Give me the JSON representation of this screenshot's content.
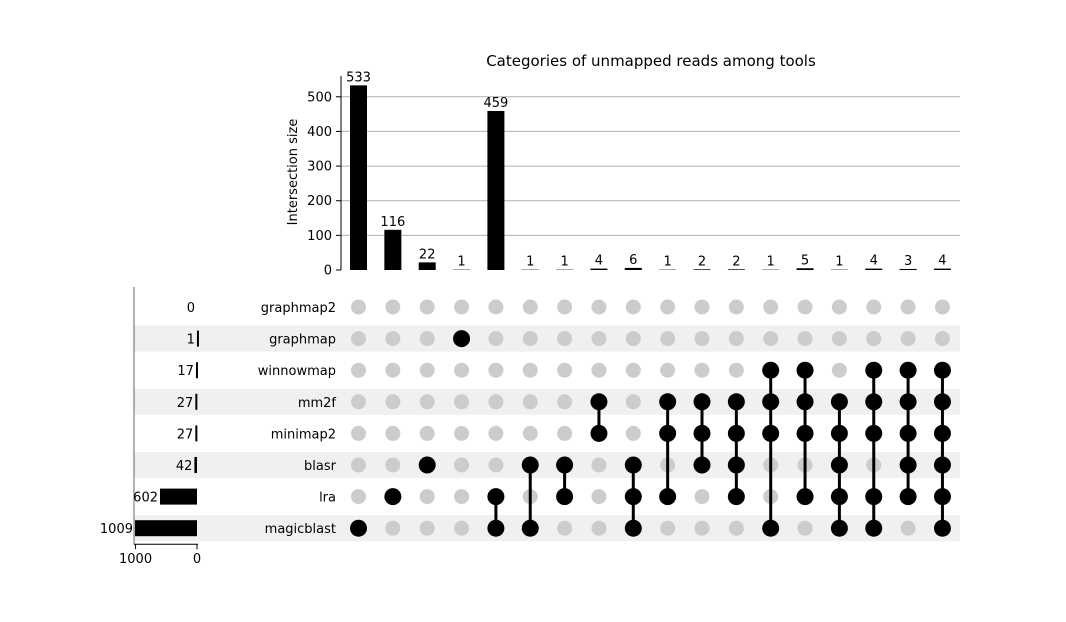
{
  "chart_data": {
    "type": "upset",
    "title": "Categories of unmapped reads among tools",
    "ylabel": "Intersection size",
    "ylim": [
      0,
      560
    ],
    "yticks": [
      0,
      100,
      200,
      300,
      400,
      500
    ],
    "set_size_ticks": [
      1000,
      0
    ],
    "set_size_xlim": [
      1009,
      0
    ],
    "grid": true,
    "sets": [
      {
        "name": "graphmap2",
        "size": 0
      },
      {
        "name": "graphmap",
        "size": 1
      },
      {
        "name": "winnowmap",
        "size": 17
      },
      {
        "name": "mm2f",
        "size": 27
      },
      {
        "name": "minimap2",
        "size": 27
      },
      {
        "name": "blasr",
        "size": 42
      },
      {
        "name": "lra",
        "size": 602
      },
      {
        "name": "magicblast",
        "size": 1009
      }
    ],
    "intersections": [
      {
        "value": 533,
        "members": [
          "magicblast"
        ]
      },
      {
        "value": 116,
        "members": [
          "lra"
        ]
      },
      {
        "value": 22,
        "members": [
          "blasr"
        ]
      },
      {
        "value": 1,
        "members": [
          "graphmap"
        ]
      },
      {
        "value": 459,
        "members": [
          "lra",
          "magicblast"
        ]
      },
      {
        "value": 1,
        "members": [
          "blasr",
          "magicblast"
        ]
      },
      {
        "value": 1,
        "members": [
          "blasr",
          "lra"
        ]
      },
      {
        "value": 4,
        "members": [
          "mm2f",
          "minimap2"
        ]
      },
      {
        "value": 6,
        "members": [
          "blasr",
          "lra",
          "magicblast"
        ]
      },
      {
        "value": 1,
        "members": [
          "mm2f",
          "minimap2",
          "lra"
        ]
      },
      {
        "value": 2,
        "members": [
          "mm2f",
          "minimap2",
          "blasr"
        ]
      },
      {
        "value": 2,
        "members": [
          "mm2f",
          "minimap2",
          "blasr",
          "lra"
        ]
      },
      {
        "value": 1,
        "members": [
          "winnowmap",
          "mm2f",
          "minimap2",
          "magicblast"
        ]
      },
      {
        "value": 5,
        "members": [
          "winnowmap",
          "mm2f",
          "minimap2",
          "lra"
        ]
      },
      {
        "value": 1,
        "members": [
          "mm2f",
          "minimap2",
          "blasr",
          "lra",
          "magicblast"
        ]
      },
      {
        "value": 4,
        "members": [
          "winnowmap",
          "mm2f",
          "minimap2",
          "lra",
          "magicblast"
        ]
      },
      {
        "value": 3,
        "members": [
          "winnowmap",
          "mm2f",
          "minimap2",
          "blasr",
          "lra"
        ]
      },
      {
        "value": 4,
        "members": [
          "winnowmap",
          "mm2f",
          "minimap2",
          "blasr",
          "lra",
          "magicblast"
        ]
      }
    ]
  },
  "colors": {
    "bar": "#000000",
    "dot_active": "#000000",
    "dot_inactive": "#cccccc",
    "row_shade": "#f0f0f0",
    "grid": "#b0b0b0"
  }
}
